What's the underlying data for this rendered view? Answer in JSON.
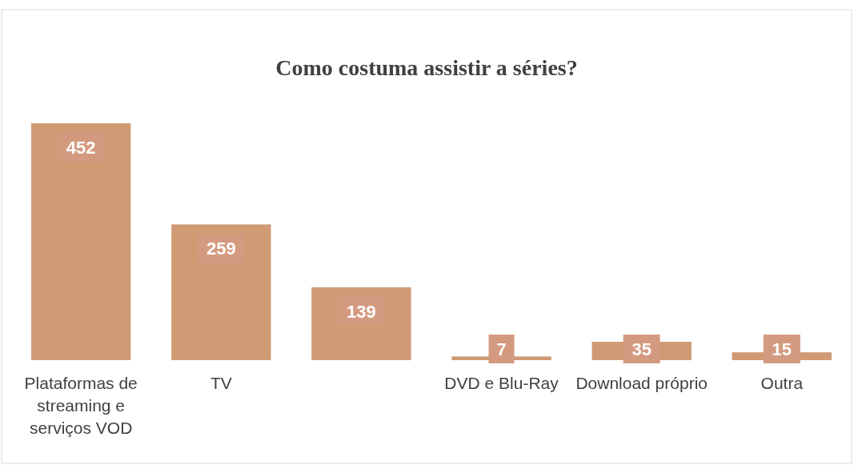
{
  "chart_data": {
    "type": "bar",
    "title": "Como costuma assistir a séries?",
    "categories": [
      "Plataformas de streaming e serviços VOD",
      "TV",
      null,
      "DVD e Blu-Ray",
      "Download próprio",
      "Outra"
    ],
    "values": [
      452,
      259,
      139,
      7,
      35,
      15
    ],
    "color": "#cf9a74",
    "data_labels": true
  }
}
